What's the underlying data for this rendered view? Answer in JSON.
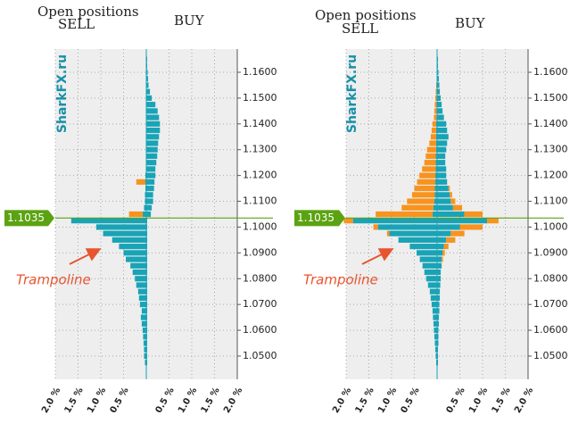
{
  "chart_data": [
    {
      "type": "hbar",
      "title": "Open positions",
      "left_label": "SELL",
      "right_label": "BUY",
      "watermark": "SharkFX.ru",
      "annotation": "Trampoline",
      "price_line": 1.1035,
      "price_line_color": "#5ba312",
      "grid": true,
      "xlim": [
        -2,
        2
      ],
      "ylim": [
        1.041,
        1.169
      ],
      "xticks": [
        {
          "value": -2,
          "label": "2.0 %"
        },
        {
          "value": -1.5,
          "label": "1.5 %"
        },
        {
          "value": -1,
          "label": "1.0 %"
        },
        {
          "value": -0.5,
          "label": "0.5 %"
        },
        {
          "value": 0.5,
          "label": "0.5 %"
        },
        {
          "value": 1,
          "label": "1.0 %"
        },
        {
          "value": 1.5,
          "label": "1.5 %"
        },
        {
          "value": 2,
          "label": "2.0 %"
        }
      ],
      "yticks": [
        {
          "value": 1.05,
          "label": "1.0500"
        },
        {
          "value": 1.06,
          "label": "1.0600"
        },
        {
          "value": 1.07,
          "label": "1.0700"
        },
        {
          "value": 1.08,
          "label": "1.0800"
        },
        {
          "value": 1.09,
          "label": "1.0900"
        },
        {
          "value": 1.1,
          "label": "1.1000"
        },
        {
          "value": 1.11,
          "label": "1.1100"
        },
        {
          "value": 1.12,
          "label": "1.1200"
        },
        {
          "value": 1.13,
          "label": "1.1300"
        },
        {
          "value": 1.14,
          "label": "1.1400"
        },
        {
          "value": 1.15,
          "label": "1.1500"
        },
        {
          "value": 1.16,
          "label": "1.1600"
        }
      ],
      "y": [
        1.0475,
        1.05,
        1.0525,
        1.055,
        1.0575,
        1.06,
        1.0625,
        1.065,
        1.0675,
        1.07,
        1.0725,
        1.075,
        1.0775,
        1.08,
        1.0825,
        1.085,
        1.0875,
        1.09,
        1.0925,
        1.095,
        1.0975,
        1.1,
        1.1025,
        1.105,
        1.1075,
        1.11,
        1.1125,
        1.115,
        1.1175,
        1.12,
        1.1225,
        1.125,
        1.1275,
        1.13,
        1.1325,
        1.135,
        1.1375,
        1.14,
        1.1425,
        1.145,
        1.1475,
        1.15,
        1.1525,
        1.155,
        1.1575,
        1.16,
        1.1625,
        1.165
      ],
      "series": [
        {
          "color": "#19a3b6",
          "values": [
            -0.03,
            -0.05,
            -0.05,
            -0.06,
            -0.07,
            -0.08,
            -0.1,
            -0.12,
            -0.1,
            -0.14,
            -0.16,
            -0.18,
            -0.22,
            -0.25,
            -0.3,
            -0.35,
            -0.45,
            -0.5,
            -0.6,
            -0.75,
            -0.95,
            -1.1,
            -1.65,
            -0.08,
            -0.05,
            -0.03,
            -0.03,
            -0.02,
            -0.02,
            -0.02,
            -0.01,
            -0.01,
            -0.01,
            -0.01,
            0,
            0,
            0,
            0,
            0,
            0,
            0,
            0,
            0,
            0,
            0,
            0,
            0,
            0
          ]
        },
        {
          "color": "#f7931e",
          "values": [
            0,
            0,
            0,
            0,
            0,
            0,
            0,
            0,
            0,
            0,
            0,
            0,
            0,
            0,
            0,
            0,
            0,
            0,
            0,
            0,
            0,
            0,
            0,
            -0.3,
            0,
            0,
            0,
            0,
            -0.2,
            0,
            0,
            0,
            0,
            0,
            0,
            0,
            0,
            0,
            0,
            0,
            0,
            0,
            0,
            0,
            0,
            0,
            0,
            0
          ]
        },
        {
          "color": "#19a3b6",
          "values": [
            0.02,
            0.02,
            0.02,
            0.02,
            0.02,
            0.02,
            0.02,
            0.02,
            0.02,
            0.02,
            0.02,
            0.02,
            0.02,
            0.02,
            0.02,
            0.02,
            0.02,
            0.02,
            0.02,
            0.02,
            0.02,
            0.02,
            0.02,
            0.1,
            0.12,
            0.15,
            0.15,
            0.17,
            0.18,
            0.2,
            0.2,
            0.22,
            0.24,
            0.25,
            0.26,
            0.28,
            0.3,
            0.3,
            0.28,
            0.25,
            0.2,
            0.12,
            0.08,
            0.05,
            0.04,
            0.03,
            0.02,
            0.02
          ]
        }
      ]
    },
    {
      "type": "hbar",
      "title": "Open positions",
      "left_label": "SELL",
      "right_label": "BUY",
      "watermark": "SharkFX.ru",
      "annotation": "Trampoline",
      "price_line": 1.1035,
      "price_line_color": "#5ba312",
      "grid": true,
      "xlim": [
        -2,
        2
      ],
      "ylim": [
        1.041,
        1.169
      ],
      "xticks": [
        {
          "value": -2,
          "label": "2.0 %"
        },
        {
          "value": -1.5,
          "label": "1.5 %"
        },
        {
          "value": -1,
          "label": "1.0 %"
        },
        {
          "value": -0.5,
          "label": "0.5 %"
        },
        {
          "value": 0.5,
          "label": "0.5 %"
        },
        {
          "value": 1,
          "label": "1.0 %"
        },
        {
          "value": 1.5,
          "label": "1.5 %"
        },
        {
          "value": 2,
          "label": "2.0 %"
        }
      ],
      "yticks": [
        {
          "value": 1.05,
          "label": "1.0500"
        },
        {
          "value": 1.06,
          "label": "1.0600"
        },
        {
          "value": 1.07,
          "label": "1.0700"
        },
        {
          "value": 1.08,
          "label": "1.0800"
        },
        {
          "value": 1.09,
          "label": "1.0900"
        },
        {
          "value": 1.1,
          "label": "1.1000"
        },
        {
          "value": 1.11,
          "label": "1.1100"
        },
        {
          "value": 1.12,
          "label": "1.1200"
        },
        {
          "value": 1.13,
          "label": "1.1300"
        },
        {
          "value": 1.14,
          "label": "1.1400"
        },
        {
          "value": 1.15,
          "label": "1.1500"
        },
        {
          "value": 1.16,
          "label": "1.1600"
        }
      ],
      "y": [
        1.0475,
        1.05,
        1.0525,
        1.055,
        1.0575,
        1.06,
        1.0625,
        1.065,
        1.0675,
        1.07,
        1.0725,
        1.075,
        1.0775,
        1.08,
        1.0825,
        1.085,
        1.0875,
        1.09,
        1.0925,
        1.095,
        1.0975,
        1.1,
        1.1025,
        1.105,
        1.1075,
        1.11,
        1.1125,
        1.115,
        1.1175,
        1.12,
        1.1225,
        1.125,
        1.1275,
        1.13,
        1.1325,
        1.135,
        1.1375,
        1.14,
        1.1425,
        1.145,
        1.1475,
        1.15,
        1.1525,
        1.155,
        1.1575,
        1.16,
        1.1625,
        1.165
      ],
      "series": [
        {
          "color": "#19a3b6",
          "values": [
            -0.02,
            -0.03,
            -0.04,
            -0.05,
            -0.06,
            -0.07,
            -0.08,
            -0.09,
            -0.1,
            -0.12,
            -0.14,
            -0.16,
            -0.2,
            -0.24,
            -0.28,
            -0.32,
            -0.38,
            -0.45,
            -0.6,
            -0.85,
            -1.05,
            -1.3,
            -1.85,
            -0.1,
            -0.08,
            -0.06,
            -0.05,
            -0.05,
            -0.04,
            -0.04,
            -0.03,
            -0.03,
            -0.03,
            -0.02,
            -0.02,
            -0.02,
            -0.02,
            -0.02,
            -0.01,
            -0.01,
            -0.01,
            -0.01,
            -0.01,
            0,
            0,
            0,
            0,
            0
          ]
        },
        {
          "color": "#f7931e",
          "values": [
            0,
            0,
            0,
            0,
            0,
            0,
            0,
            0,
            0,
            0,
            0,
            0,
            0,
            0,
            0,
            0,
            0,
            0,
            0,
            0,
            -0.05,
            -0.1,
            -0.2,
            -1.25,
            -0.7,
            -0.6,
            -0.5,
            -0.45,
            -0.4,
            -0.35,
            -0.3,
            -0.25,
            -0.22,
            -0.2,
            -0.15,
            -0.12,
            -0.1,
            -0.08,
            -0.06,
            -0.05,
            -0.04,
            -0.03,
            -0.02,
            -0.02,
            -0.01,
            0,
            0,
            0
          ]
        },
        {
          "color": "#19a3b6",
          "values": [
            0.02,
            0.02,
            0.02,
            0.03,
            0.03,
            0.03,
            0.04,
            0.04,
            0.05,
            0.05,
            0.06,
            0.06,
            0.07,
            0.08,
            0.08,
            0.1,
            0.1,
            0.12,
            0.15,
            0.2,
            0.3,
            0.5,
            1.1,
            0.6,
            0.35,
            0.3,
            0.28,
            0.25,
            0.22,
            0.2,
            0.2,
            0.18,
            0.18,
            0.2,
            0.22,
            0.25,
            0.22,
            0.2,
            0.15,
            0.12,
            0.1,
            0.08,
            0.06,
            0.05,
            0.04,
            0.03,
            0.02,
            0.02
          ]
        },
        {
          "color": "#f7931e",
          "values": [
            0,
            0,
            0,
            0,
            0,
            0,
            0,
            0,
            0,
            0,
            0,
            0,
            0,
            0,
            0,
            0,
            0.03,
            0.05,
            0.1,
            0.2,
            0.3,
            0.5,
            0.25,
            0.4,
            0.2,
            0.1,
            0.05,
            0.03,
            0,
            0,
            0,
            0,
            0,
            0,
            0,
            0,
            0,
            0,
            0,
            0,
            0,
            0,
            0,
            0,
            0,
            0,
            0,
            0
          ]
        }
      ]
    }
  ]
}
